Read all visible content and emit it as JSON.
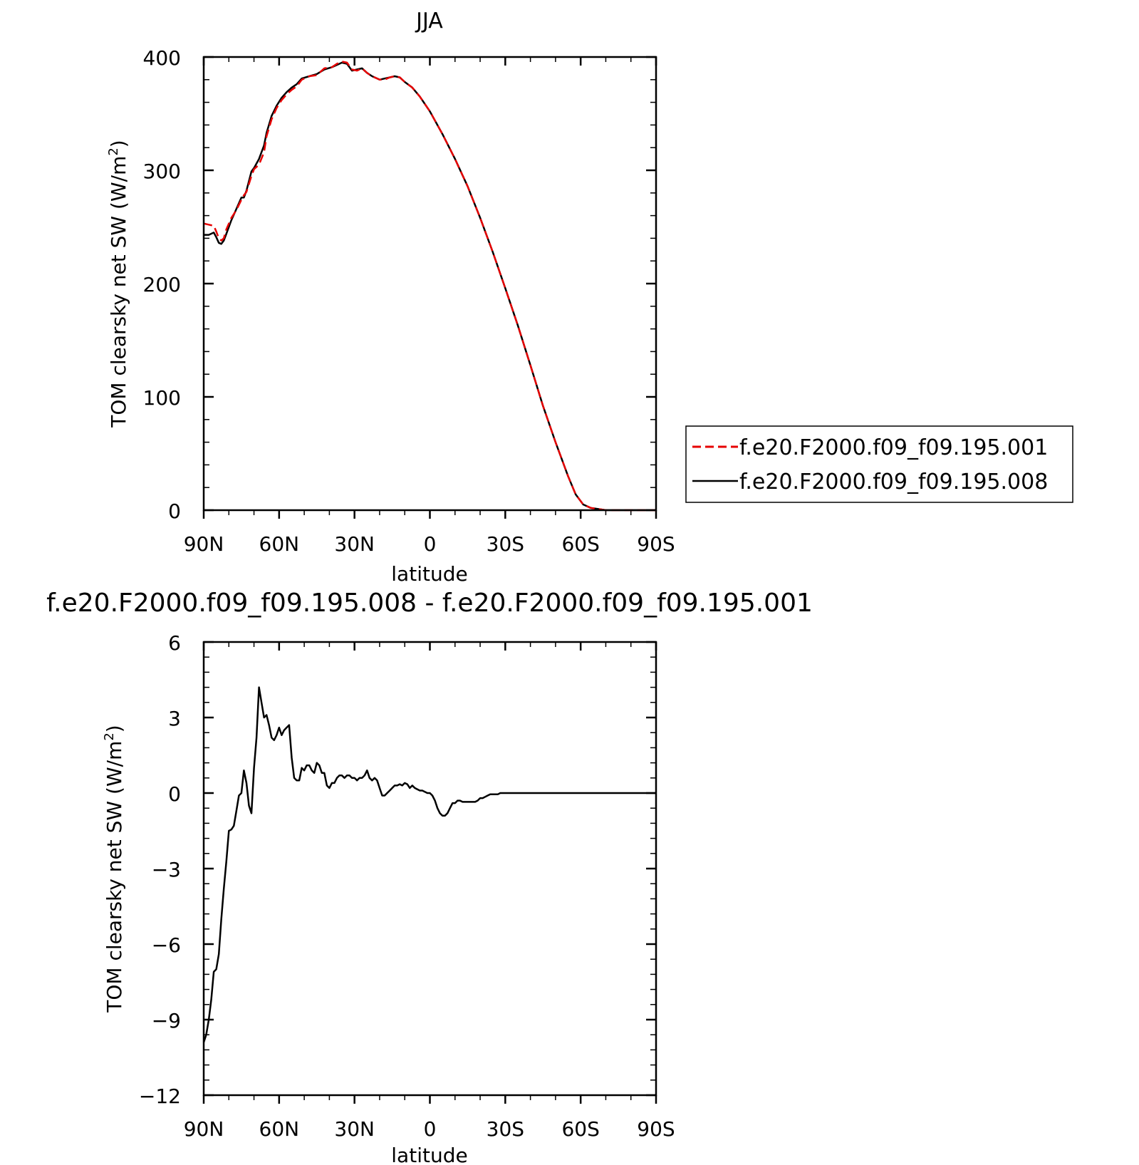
{
  "chart_data": [
    {
      "type": "line",
      "title": "JJA",
      "xlabel": "latitude",
      "ylabel": "TOM clearsky net SW (W/m",
      "ylabel_sup": "2",
      "ylabel_end": ")",
      "xlim": [
        90,
        -90
      ],
      "ylim": [
        0,
        400
      ],
      "x_ticks": [
        90,
        60,
        30,
        0,
        -30,
        -60,
        -90
      ],
      "x_tick_labels": [
        "90N",
        "60N",
        "30N",
        "0",
        "30S",
        "60S",
        "90S"
      ],
      "y_ticks": [
        0,
        100,
        200,
        300,
        400
      ],
      "y_tick_labels": [
        "0",
        "100",
        "200",
        "300",
        "400"
      ],
      "legend_position": "right",
      "colors": {
        "series_001": "#e60000",
        "series_008": "#000000"
      },
      "series": [
        {
          "name": "f.e20.F2000.f09_f09.195.001",
          "style": "dashed",
          "x": [
            90,
            88,
            86,
            85,
            84,
            83,
            82,
            81,
            79,
            77,
            75,
            74,
            73,
            71,
            70,
            68,
            66,
            65,
            63,
            61,
            59,
            57,
            55,
            53,
            51,
            48,
            45,
            42,
            39,
            37,
            35,
            33,
            31,
            29,
            27,
            25,
            23,
            20,
            18,
            16,
            14,
            12,
            10,
            7,
            4,
            0,
            -5,
            -10,
            -15,
            -20,
            -25,
            -30,
            -35,
            -40,
            -45,
            -50,
            -55,
            -58,
            -61,
            -64,
            -67,
            -70,
            -73,
            -76,
            -80,
            -85,
            -90
          ],
          "y": [
            253,
            252,
            251,
            246,
            240,
            238,
            240,
            248,
            258,
            265,
            274,
            278,
            281,
            295,
            301,
            305,
            316,
            330,
            345,
            355,
            362,
            367,
            371,
            374,
            380,
            383,
            384,
            390,
            391,
            394,
            396,
            395,
            389,
            388,
            390,
            386,
            383,
            380,
            380,
            382,
            383,
            382,
            378,
            373,
            365,
            352,
            332,
            310,
            286,
            258,
            228,
            196,
            163,
            128,
            92,
            60,
            30,
            14,
            5,
            2,
            1,
            0,
            0,
            0,
            0,
            0,
            0
          ]
        },
        {
          "name": "f.e20.F2000.f09_f09.195.008",
          "style": "solid",
          "x": [
            90,
            88,
            86,
            85,
            84,
            83,
            82,
            81,
            79,
            77,
            75,
            74,
            73,
            71,
            70,
            68,
            66,
            65,
            63,
            61,
            59,
            57,
            55,
            53,
            51,
            48,
            45,
            42,
            39,
            37,
            35,
            33,
            31,
            29,
            27,
            25,
            23,
            20,
            18,
            16,
            14,
            12,
            10,
            7,
            4,
            0,
            -5,
            -10,
            -15,
            -20,
            -25,
            -30,
            -35,
            -40,
            -45,
            -50,
            -55,
            -58,
            -61,
            -64,
            -67,
            -70,
            -73,
            -76,
            -80,
            -85,
            -90
          ],
          "y": [
            243,
            243,
            245,
            241,
            236,
            235,
            238,
            244,
            256,
            266,
            276,
            276,
            282,
            299,
            302,
            310,
            322,
            333,
            348,
            357,
            364,
            369,
            373,
            376,
            381,
            383,
            385,
            389,
            391,
            393,
            395,
            394,
            388,
            389,
            390,
            386,
            383,
            380,
            381,
            382,
            383,
            382,
            378,
            373,
            365,
            352,
            332,
            310,
            286,
            258,
            228,
            196,
            163,
            128,
            92,
            60,
            30,
            14,
            5,
            2,
            1,
            0,
            0,
            0,
            0,
            0,
            0
          ]
        }
      ]
    },
    {
      "type": "line",
      "title": "f.e20.F2000.f09_f09.195.008 - f.e20.F2000.f09_f09.195.001",
      "xlabel": "latitude",
      "ylabel": "TOM clearsky net SW (W/m",
      "ylabel_sup": "2",
      "ylabel_end": ")",
      "xlim": [
        90,
        -90
      ],
      "ylim": [
        -12,
        6
      ],
      "x_ticks": [
        90,
        60,
        30,
        0,
        -30,
        -60,
        -90
      ],
      "x_tick_labels": [
        "90N",
        "60N",
        "30N",
        "0",
        "30S",
        "60S",
        "90S"
      ],
      "y_ticks": [
        6,
        3,
        0,
        -3,
        -6,
        -9,
        -12
      ],
      "y_tick_labels": [
        "6",
        "3",
        "0",
        "−3",
        "−6",
        "−9",
        "−12"
      ],
      "colors": {
        "difference": "#000000"
      },
      "series": [
        {
          "style": "solid",
          "x": [
            90,
            89,
            88,
            87,
            86,
            85,
            84,
            83,
            82,
            81,
            80,
            79,
            78,
            77,
            76,
            75,
            74,
            73,
            72,
            71,
            70,
            69,
            68,
            67,
            66,
            65,
            64,
            63,
            62,
            61,
            60,
            59,
            58,
            57,
            56,
            55,
            54,
            53,
            52,
            51,
            50,
            49,
            48,
            47,
            46,
            45,
            44,
            43,
            42,
            41,
            40,
            39,
            38,
            37,
            36,
            35,
            34,
            33,
            32,
            31,
            30,
            29,
            28,
            27,
            26,
            25,
            24,
            23,
            22,
            21,
            20,
            19,
            18,
            17,
            16,
            15,
            14,
            13,
            12,
            11,
            10,
            9,
            8,
            7,
            6,
            5,
            4,
            3,
            2,
            1,
            0,
            -1,
            -2,
            -3,
            -4,
            -5,
            -6,
            -7,
            -8,
            -9,
            -10,
            -11,
            -12,
            -13,
            -14,
            -15,
            -16,
            -17,
            -18,
            -19,
            -20,
            -21,
            -22,
            -23,
            -24,
            -25,
            -26,
            -27,
            -28,
            -29,
            -30,
            -32,
            -34,
            -36,
            -38,
            -40,
            -42,
            -44,
            -46,
            -48,
            -50,
            -52,
            -55,
            -58,
            -61,
            -64,
            -67,
            -70,
            -75,
            -80,
            -85,
            -90
          ],
          "y": [
            -9.9,
            -9.6,
            -9.0,
            -8.2,
            -7.1,
            -7.0,
            -6.4,
            -5.0,
            -3.8,
            -2.7,
            -1.5,
            -1.45,
            -1.3,
            -0.7,
            -0.1,
            0.0,
            0.9,
            0.4,
            -0.5,
            -0.8,
            1.0,
            2.2,
            4.2,
            3.6,
            3.0,
            3.1,
            2.7,
            2.2,
            2.1,
            2.3,
            2.6,
            2.3,
            2.5,
            2.6,
            2.7,
            1.4,
            0.6,
            0.5,
            0.5,
            1.0,
            0.9,
            1.1,
            1.1,
            0.9,
            0.8,
            1.2,
            1.1,
            0.8,
            0.8,
            0.3,
            0.2,
            0.4,
            0.4,
            0.6,
            0.7,
            0.7,
            0.6,
            0.7,
            0.7,
            0.6,
            0.6,
            0.5,
            0.6,
            0.6,
            0.7,
            0.9,
            0.6,
            0.5,
            0.6,
            0.5,
            0.2,
            -0.1,
            -0.1,
            0.0,
            0.1,
            0.2,
            0.3,
            0.3,
            0.35,
            0.3,
            0.4,
            0.35,
            0.2,
            0.3,
            0.2,
            0.15,
            0.1,
            0.1,
            0.05,
            0.0,
            0.0,
            -0.1,
            -0.3,
            -0.6,
            -0.8,
            -0.9,
            -0.9,
            -0.8,
            -0.6,
            -0.4,
            -0.4,
            -0.3,
            -0.3,
            -0.35,
            -0.35,
            -0.35,
            -0.35,
            -0.35,
            -0.35,
            -0.3,
            -0.2,
            -0.2,
            -0.15,
            -0.1,
            -0.05,
            -0.05,
            -0.05,
            -0.05,
            0.0,
            0.0,
            0.0,
            0.0,
            0.0,
            0.0,
            0.0,
            0.0,
            0.0,
            0.0,
            0.0,
            0.0,
            0.0,
            0.0,
            0.0,
            0.0,
            0.0,
            0.0,
            0.0,
            0.0,
            0.0,
            0.0,
            0.0,
            0.0
          ]
        }
      ]
    }
  ]
}
